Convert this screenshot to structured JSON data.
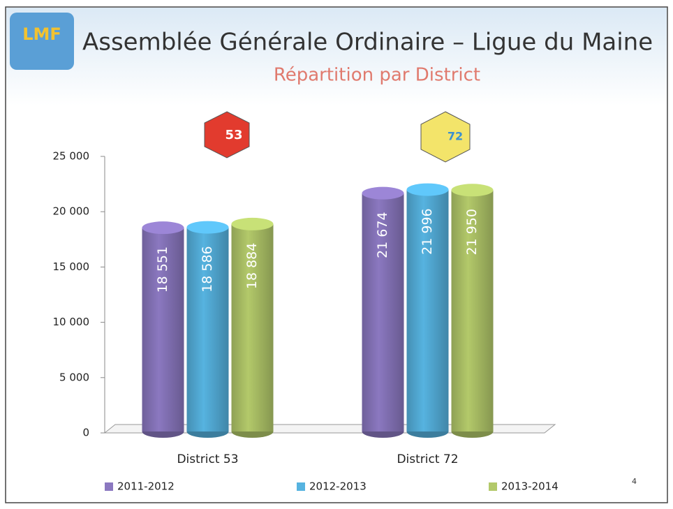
{
  "logo_text": "LMF",
  "page_number": "4",
  "district_icons": [
    "53",
    "72"
  ],
  "chart_data": {
    "type": "bar",
    "title": "Assemblée Générale Ordinaire – Ligue du Maine",
    "subtitle": "Répartition par District",
    "categories": [
      "District 53",
      "District 72"
    ],
    "series": [
      {
        "name": "2011-2012",
        "color": "#8b78c0",
        "values": [
          18551,
          21674
        ],
        "value_labels": [
          "18 551",
          "21 674"
        ]
      },
      {
        "name": "2012-2013",
        "color": "#56b3e0",
        "values": [
          18586,
          21996
        ],
        "value_labels": [
          "18 586",
          "21 996"
        ]
      },
      {
        "name": "2013-2014",
        "color": "#b3c96a",
        "values": [
          18884,
          21950
        ],
        "value_labels": [
          "18 884",
          "21 950"
        ]
      }
    ],
    "ylim": [
      0,
      25000
    ],
    "yticks": [
      0,
      {
        "value": 5000,
        "label": "5 000"
      },
      {
        "value": 10000,
        "label": "10 000"
      },
      {
        "value": 15000,
        "label": "15 000"
      },
      {
        "value": 20000,
        "label": "20 000"
      },
      {
        "value": 25000,
        "label": "25 000"
      }
    ],
    "legend": "bottom"
  }
}
